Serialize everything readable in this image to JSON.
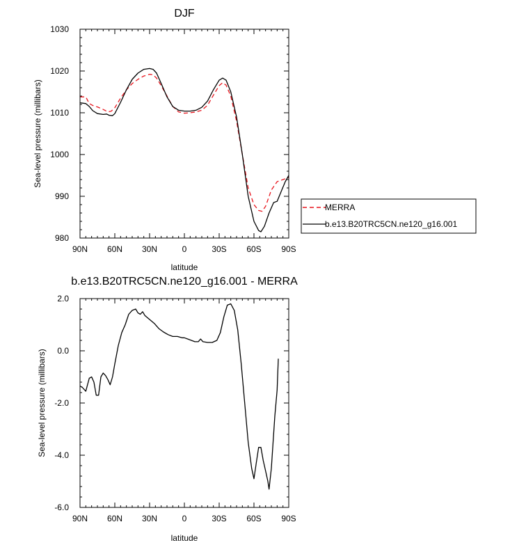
{
  "chart_data": [
    {
      "type": "line",
      "title": "DJF",
      "xlabel": "latitude",
      "ylabel": "Sea-level pressure (millibars)",
      "xlim": [
        90,
        -90
      ],
      "ylim": [
        980,
        1030
      ],
      "x_ticks": [
        90,
        60,
        30,
        0,
        -30,
        -60,
        -90
      ],
      "x_tick_labels": [
        "90N",
        "60N",
        "30N",
        "0",
        "30S",
        "60S",
        "90S"
      ],
      "y_ticks": [
        980,
        990,
        1000,
        1010,
        1020,
        1030
      ],
      "y_tick_labels": [
        "980",
        "990",
        "1000",
        "1010",
        "1020",
        "1030"
      ],
      "grid": false,
      "legend_position": "right",
      "series": [
        {
          "name": "MERRA",
          "color": "#e8141c",
          "dash": "dashed",
          "points": [
            [
              90,
              1013.8
            ],
            [
              85,
              1013.8
            ],
            [
              82,
              1012.2
            ],
            [
              78,
              1011.6
            ],
            [
              75,
              1011.4
            ],
            [
              70,
              1010.8
            ],
            [
              66,
              1010.2
            ],
            [
              63,
              1010.4
            ],
            [
              60,
              1011.2
            ],
            [
              55,
              1013.5
            ],
            [
              50,
              1015.5
            ],
            [
              45,
              1017.0
            ],
            [
              40,
              1018.0
            ],
            [
              35,
              1018.8
            ],
            [
              30,
              1019.2
            ],
            [
              27,
              1019.1
            ],
            [
              24,
              1018.3
            ],
            [
              20,
              1016.5
            ],
            [
              15,
              1014.0
            ],
            [
              10,
              1011.5
            ],
            [
              5,
              1010.2
            ],
            [
              0,
              1009.9
            ],
            [
              -5,
              1010.0
            ],
            [
              -10,
              1010.2
            ],
            [
              -15,
              1010.6
            ],
            [
              -20,
              1011.8
            ],
            [
              -25,
              1014.2
            ],
            [
              -30,
              1016.5
            ],
            [
              -33,
              1017.2
            ],
            [
              -36,
              1016.6
            ],
            [
              -40,
              1014.0
            ],
            [
              -45,
              1008.0
            ],
            [
              -50,
              1000.0
            ],
            [
              -55,
              992.0
            ],
            [
              -60,
              988.0
            ],
            [
              -64,
              986.6
            ],
            [
              -67,
              986.4
            ],
            [
              -70,
              987.6
            ],
            [
              -75,
              991.5
            ],
            [
              -80,
              993.5
            ],
            [
              -85,
              994.0
            ],
            [
              -90,
              994.5
            ]
          ]
        },
        {
          "name": "b.e13.B20TRC5CN.ne120_g16.001",
          "color": "#000000",
          "dash": "solid",
          "points": [
            [
              90,
              1012.4
            ],
            [
              85,
              1012.2
            ],
            [
              82,
              1011.5
            ],
            [
              79,
              1010.5
            ],
            [
              75,
              1009.8
            ],
            [
              70,
              1009.6
            ],
            [
              67,
              1009.7
            ],
            [
              65,
              1009.4
            ],
            [
              62,
              1009.3
            ],
            [
              60,
              1009.8
            ],
            [
              55,
              1012.5
            ],
            [
              50,
              1015.5
            ],
            [
              45,
              1018.0
            ],
            [
              40,
              1019.5
            ],
            [
              35,
              1020.4
            ],
            [
              30,
              1020.6
            ],
            [
              27,
              1020.4
            ],
            [
              24,
              1019.5
            ],
            [
              20,
              1017.0
            ],
            [
              15,
              1013.8
            ],
            [
              10,
              1011.5
            ],
            [
              5,
              1010.6
            ],
            [
              0,
              1010.4
            ],
            [
              -5,
              1010.4
            ],
            [
              -10,
              1010.6
            ],
            [
              -15,
              1011.3
            ],
            [
              -20,
              1012.8
            ],
            [
              -25,
              1015.5
            ],
            [
              -30,
              1017.8
            ],
            [
              -33,
              1018.3
            ],
            [
              -36,
              1017.8
            ],
            [
              -40,
              1015.0
            ],
            [
              -45,
              1009.0
            ],
            [
              -50,
              1000.0
            ],
            [
              -55,
              990.0
            ],
            [
              -60,
              984.0
            ],
            [
              -64,
              981.8
            ],
            [
              -66,
              981.5
            ],
            [
              -69,
              982.8
            ],
            [
              -73,
              986.0
            ],
            [
              -77,
              988.5
            ],
            [
              -80,
              988.8
            ],
            [
              -84,
              991.5
            ],
            [
              -87,
              993.5
            ],
            [
              -90,
              995.0
            ]
          ]
        }
      ]
    },
    {
      "type": "line",
      "title": "b.e13.B20TRC5CN.ne120_g16.001 - MERRA",
      "xlabel": "latitude",
      "ylabel": "Sea-level pressure (millibars)",
      "xlim": [
        90,
        -90
      ],
      "ylim": [
        -6,
        2
      ],
      "x_ticks": [
        90,
        60,
        30,
        0,
        -30,
        -60,
        -90
      ],
      "x_tick_labels": [
        "90N",
        "60N",
        "30N",
        "0",
        "30S",
        "60S",
        "90S"
      ],
      "y_ticks": [
        -6,
        -4,
        -2,
        0,
        2
      ],
      "y_tick_labels": [
        "-6.0",
        "-4.0",
        "-2.0",
        "0.0",
        "2.0"
      ],
      "grid": false,
      "series": [
        {
          "color": "#000000",
          "dash": "solid",
          "points": [
            [
              90,
              -1.35
            ],
            [
              88,
              -1.4
            ],
            [
              85,
              -1.55
            ],
            [
              82,
              -1.05
            ],
            [
              80,
              -1.0
            ],
            [
              78,
              -1.2
            ],
            [
              76,
              -1.7
            ],
            [
              74,
              -1.7
            ],
            [
              72,
              -1.0
            ],
            [
              70,
              -0.85
            ],
            [
              68,
              -0.95
            ],
            [
              66,
              -1.1
            ],
            [
              64,
              -1.3
            ],
            [
              62,
              -1.0
            ],
            [
              60,
              -0.5
            ],
            [
              57,
              0.2
            ],
            [
              54,
              0.7
            ],
            [
              51,
              1.0
            ],
            [
              48,
              1.4
            ],
            [
              45,
              1.55
            ],
            [
              42,
              1.6
            ],
            [
              40,
              1.45
            ],
            [
              38,
              1.4
            ],
            [
              36,
              1.5
            ],
            [
              34,
              1.35
            ],
            [
              30,
              1.2
            ],
            [
              26,
              1.05
            ],
            [
              22,
              0.85
            ],
            [
              18,
              0.72
            ],
            [
              14,
              0.62
            ],
            [
              10,
              0.55
            ],
            [
              6,
              0.55
            ],
            [
              2,
              0.5
            ],
            [
              0,
              0.5
            ],
            [
              -3,
              0.45
            ],
            [
              -6,
              0.4
            ],
            [
              -9,
              0.35
            ],
            [
              -12,
              0.35
            ],
            [
              -14,
              0.45
            ],
            [
              -16,
              0.35
            ],
            [
              -20,
              0.32
            ],
            [
              -24,
              0.32
            ],
            [
              -28,
              0.4
            ],
            [
              -31,
              0.7
            ],
            [
              -34,
              1.3
            ],
            [
              -37,
              1.75
            ],
            [
              -40,
              1.8
            ],
            [
              -43,
              1.55
            ],
            [
              -46,
              0.8
            ],
            [
              -49,
              -0.5
            ],
            [
              -52,
              -2.0
            ],
            [
              -55,
              -3.5
            ],
            [
              -58,
              -4.5
            ],
            [
              -60,
              -4.9
            ],
            [
              -62,
              -4.3
            ],
            [
              -64,
              -3.7
            ],
            [
              -66,
              -3.7
            ],
            [
              -68,
              -4.2
            ],
            [
              -70,
              -4.6
            ],
            [
              -72,
              -5.0
            ],
            [
              -73,
              -5.3
            ],
            [
              -75,
              -4.5
            ],
            [
              -78,
              -2.5
            ],
            [
              -80,
              -1.5
            ],
            [
              -81,
              -0.3
            ]
          ]
        }
      ]
    }
  ]
}
